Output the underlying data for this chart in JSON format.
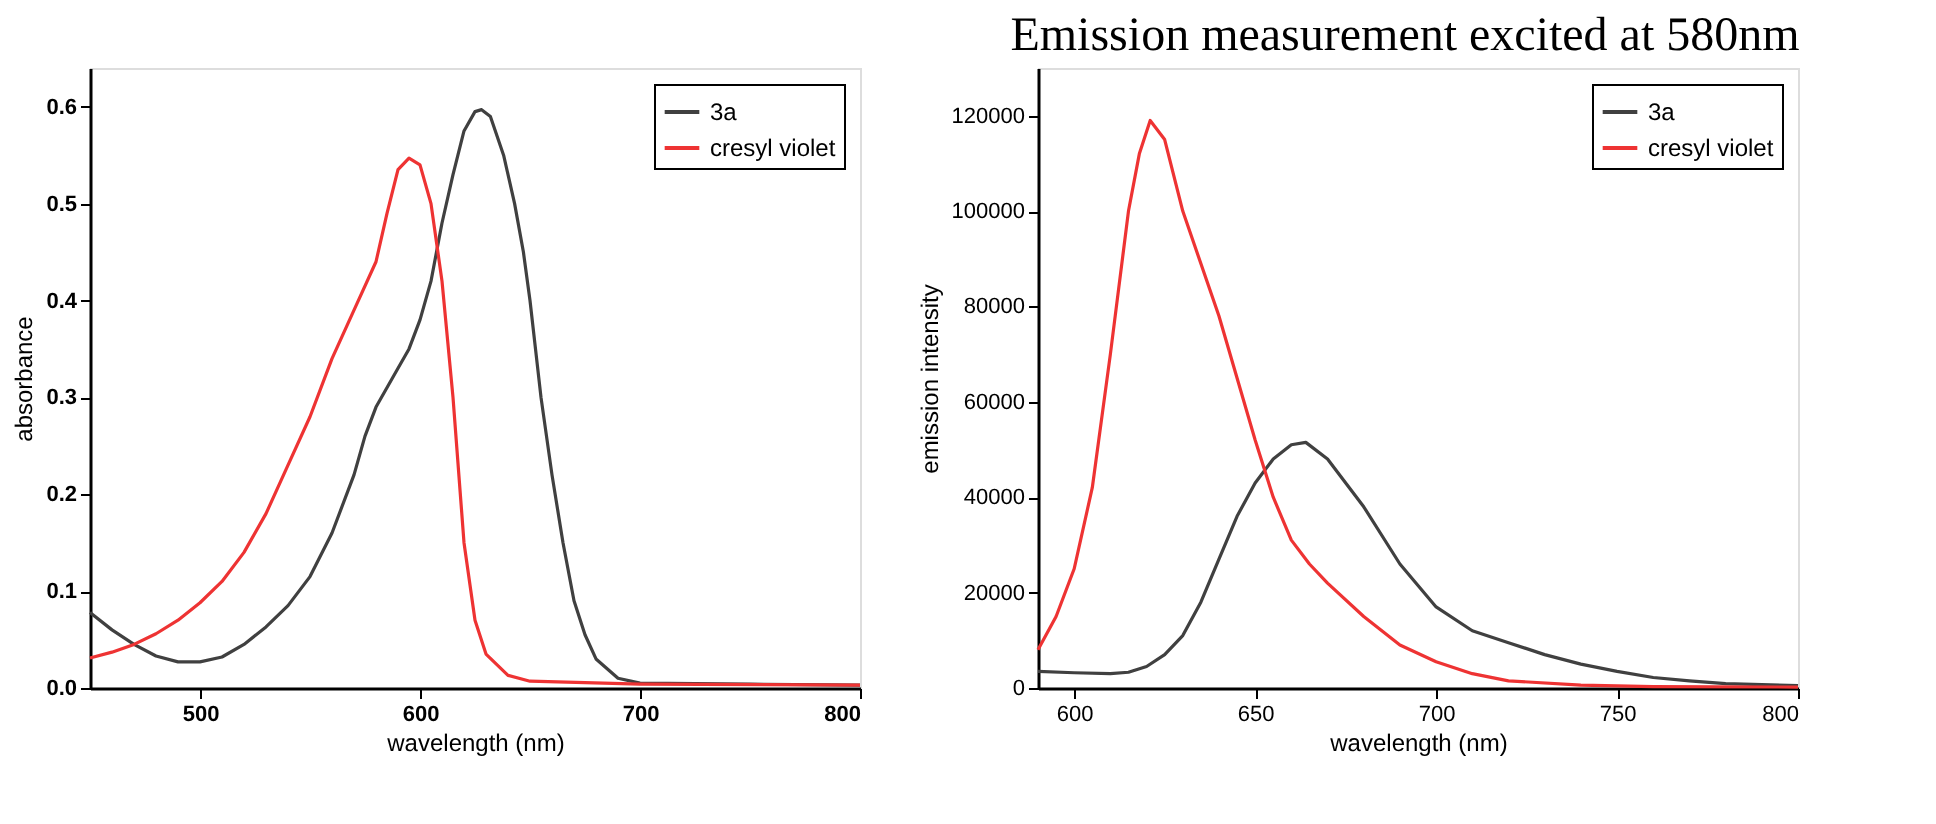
{
  "chart_data": [
    {
      "type": "line",
      "xlabel": "wavelength (nm)",
      "ylabel": "absorbance",
      "xlim": [
        450,
        800
      ],
      "xticks": [
        500,
        600,
        700,
        800
      ],
      "ylim": [
        0,
        0.64
      ],
      "yticks": [
        {
          "value": 0,
          "label": "0.0"
        },
        0.1,
        0.2,
        0.3,
        0.4,
        0.5,
        0.6
      ],
      "legend": "top right",
      "grid": false,
      "line_style": "solid",
      "marker": "none",
      "series": [
        {
          "name": "3a",
          "color": "#404040",
          "x": [
            450,
            460,
            470,
            480,
            490,
            500,
            510,
            520,
            530,
            540,
            550,
            560,
            570,
            575,
            580,
            590,
            595,
            600,
            605,
            610,
            615,
            620,
            625,
            628,
            632,
            638,
            643,
            647,
            650,
            655,
            660,
            665,
            670,
            675,
            680,
            690,
            700,
            750,
            800
          ],
          "values": [
            0.078,
            0.06,
            0.045,
            0.033,
            0.027,
            0.027,
            0.032,
            0.045,
            0.063,
            0.085,
            0.115,
            0.16,
            0.22,
            0.26,
            0.29,
            0.33,
            0.35,
            0.38,
            0.42,
            0.48,
            0.53,
            0.575,
            0.595,
            0.597,
            0.59,
            0.55,
            0.5,
            0.45,
            0.4,
            0.3,
            0.22,
            0.15,
            0.09,
            0.055,
            0.03,
            0.01,
            0.005,
            0.004,
            0.003
          ]
        },
        {
          "name": "cresyl violet",
          "color": "#ee3333",
          "x": [
            450,
            460,
            470,
            480,
            490,
            500,
            510,
            520,
            530,
            540,
            550,
            560,
            570,
            580,
            585,
            590,
            595,
            600,
            605,
            610,
            615,
            620,
            625,
            630,
            640,
            650,
            700,
            800
          ],
          "values": [
            0.031,
            0.037,
            0.045,
            0.056,
            0.07,
            0.088,
            0.11,
            0.14,
            0.18,
            0.23,
            0.28,
            0.34,
            0.39,
            0.44,
            0.49,
            0.535,
            0.547,
            0.54,
            0.5,
            0.42,
            0.3,
            0.15,
            0.07,
            0.035,
            0.013,
            0.007,
            0.004,
            0.003
          ]
        }
      ]
    },
    {
      "type": "line",
      "title": "Emission measurement excited at 580nm",
      "xlabel": "wavelength (nm)",
      "ylabel": "emission intensity",
      "xlim": [
        590,
        800
      ],
      "xticks": [
        600,
        650,
        700,
        750,
        800
      ],
      "ylim": [
        0,
        130000
      ],
      "yticks": [
        0,
        20000,
        40000,
        60000,
        80000,
        100000,
        120000
      ],
      "legend": "top right",
      "grid": false,
      "line_style": "solid",
      "marker": "none",
      "series": [
        {
          "name": "3a",
          "color": "#404040",
          "x": [
            590,
            600,
            610,
            615,
            620,
            625,
            630,
            635,
            640,
            645,
            650,
            655,
            660,
            664,
            670,
            680,
            690,
            700,
            710,
            720,
            730,
            740,
            750,
            760,
            770,
            780,
            800
          ],
          "values": [
            3500,
            3200,
            3000,
            3300,
            4500,
            7000,
            11000,
            18000,
            27000,
            36000,
            43000,
            48000,
            51000,
            51500,
            48000,
            38000,
            26000,
            17000,
            12000,
            9500,
            7000,
            5000,
            3500,
            2200,
            1500,
            900,
            500
          ]
        },
        {
          "name": "cresyl violet",
          "color": "#ee3333",
          "x": [
            590,
            595,
            600,
            605,
            610,
            615,
            618,
            621,
            625,
            630,
            640,
            650,
            655,
            660,
            665,
            670,
            680,
            690,
            700,
            710,
            720,
            740,
            760,
            800
          ],
          "values": [
            8000,
            15000,
            25000,
            42000,
            70000,
            100000,
            112000,
            119000,
            115000,
            100000,
            78000,
            52000,
            40000,
            31000,
            26000,
            22000,
            15000,
            9000,
            5500,
            3000,
            1500,
            600,
            300,
            200
          ]
        }
      ]
    }
  ]
}
